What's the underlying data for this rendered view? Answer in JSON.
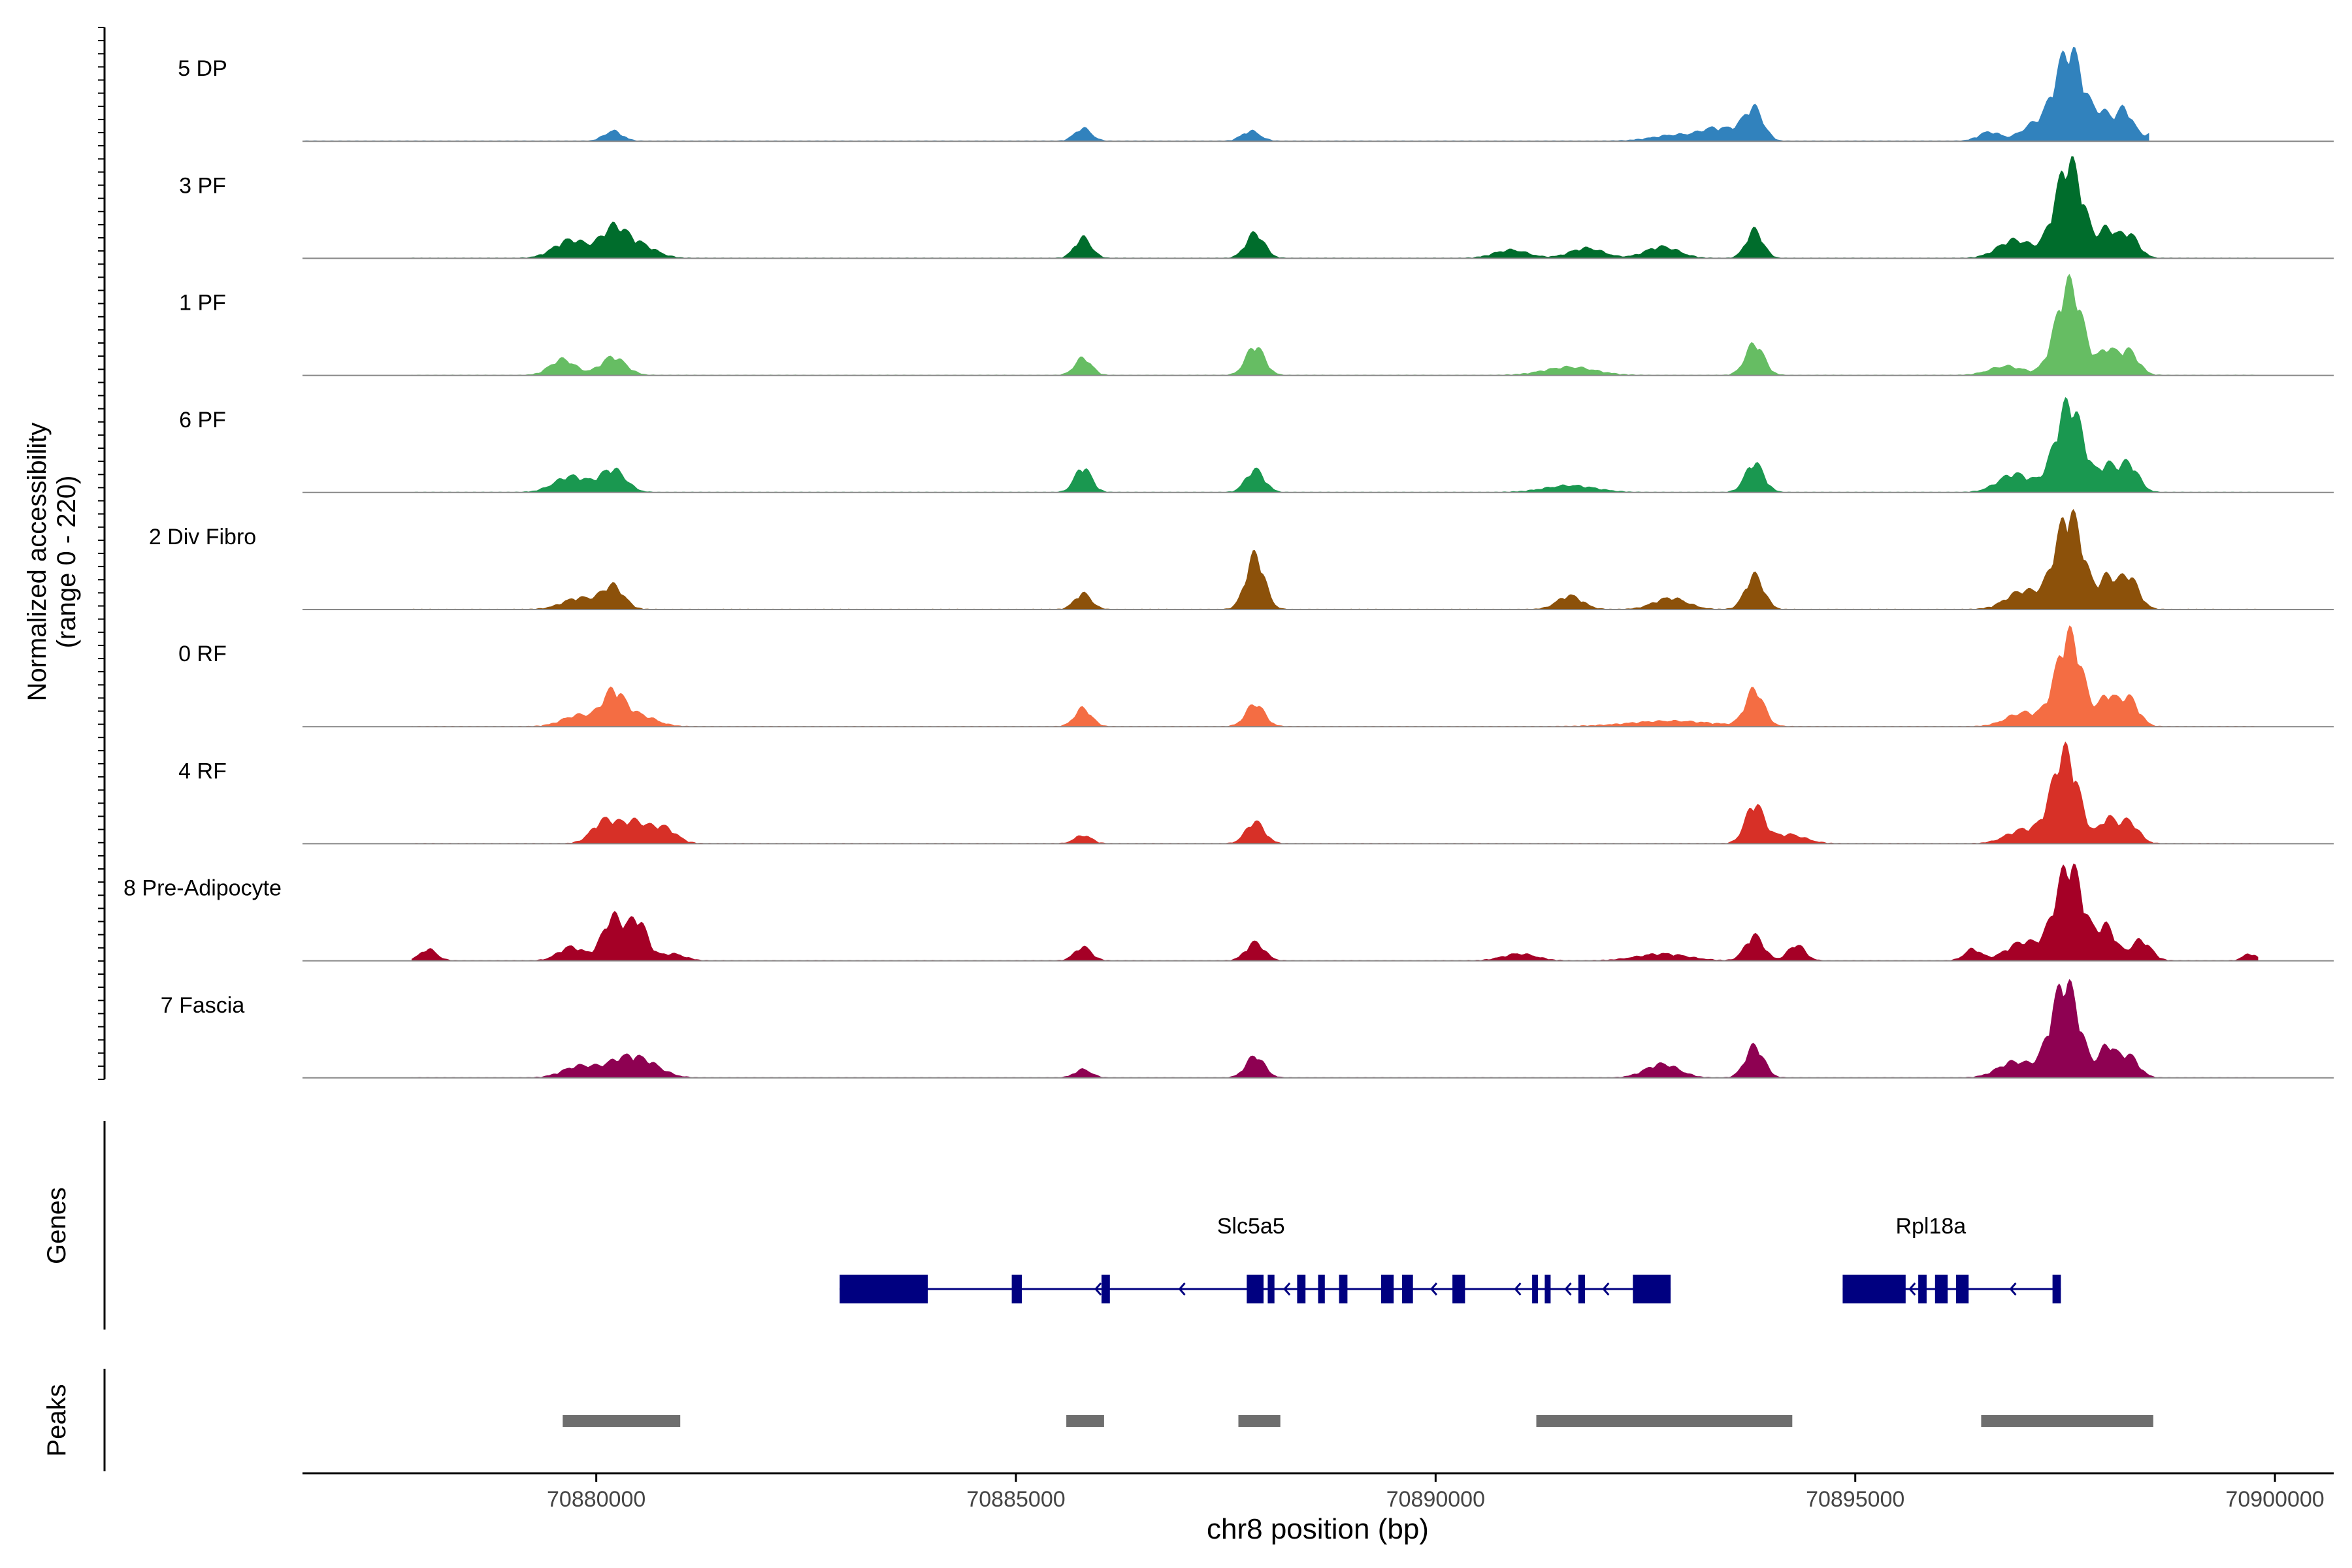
{
  "chart_data": {
    "type": "area",
    "title": "",
    "chromosome": "chr8",
    "x_range": [
      70876500,
      70900700
    ],
    "xlabel": "chr8 position (bp)",
    "xticks": [
      70880000,
      70885000,
      70890000,
      70895000,
      70900000
    ],
    "xtick_labels": [
      "70880000",
      "70885000",
      "70890000",
      "70895000",
      "70900000"
    ],
    "coverage_ylabel": [
      "Normalized accessibility",
      "(range 0 - 220)"
    ],
    "y_range": [
      0,
      220
    ],
    "genes_label": "Genes",
    "peaks_label": "Peaks",
    "tracks": [
      {
        "name": "5 DP",
        "color": "#3182bd",
        "span": [
          70876500,
          70898500
        ],
        "peaks": [
          [
            70880200,
            22,
            110
          ],
          [
            70885800,
            28,
            100
          ],
          [
            70887800,
            22,
            110
          ],
          [
            70892900,
            14,
            300
          ],
          [
            70893300,
            20,
            150
          ],
          [
            70893600,
            22,
            150
          ],
          [
            70893800,
            65,
            110
          ],
          [
            70896600,
            20,
            130
          ],
          [
            70897100,
            30,
            150
          ],
          [
            70897550,
            200,
            180
          ],
          [
            70897950,
            45,
            90
          ],
          [
            70898200,
            70,
            110
          ],
          [
            70898600,
            20,
            120
          ]
        ]
      },
      {
        "name": "3 PF",
        "color": "#006d2c",
        "span": [
          70877800,
          70899800
        ],
        "peaks": [
          [
            70879700,
            40,
            200
          ],
          [
            70880200,
            60,
            150
          ],
          [
            70880500,
            30,
            200
          ],
          [
            70885800,
            45,
            100
          ],
          [
            70887850,
            55,
            110
          ],
          [
            70890900,
            18,
            200
          ],
          [
            70891800,
            22,
            200
          ],
          [
            70892700,
            25,
            200
          ],
          [
            70893800,
            62,
            100
          ],
          [
            70896900,
            40,
            200
          ],
          [
            70897550,
            210,
            170
          ],
          [
            70898000,
            55,
            90
          ],
          [
            70898250,
            55,
            120
          ]
        ]
      },
      {
        "name": "1 PF",
        "color": "#66bd63",
        "span": [
          70877800,
          70899800
        ],
        "peaks": [
          [
            70879600,
            35,
            150
          ],
          [
            70880200,
            40,
            150
          ],
          [
            70885800,
            38,
            100
          ],
          [
            70887850,
            65,
            110
          ],
          [
            70891600,
            18,
            300
          ],
          [
            70893800,
            70,
            110
          ],
          [
            70896800,
            20,
            200
          ],
          [
            70897550,
            200,
            160
          ],
          [
            70898000,
            50,
            90
          ],
          [
            70898250,
            55,
            120
          ]
        ]
      },
      {
        "name": "6 PF",
        "color": "#1a9850",
        "span": [
          70877800,
          70899800
        ],
        "peaks": [
          [
            70879700,
            35,
            200
          ],
          [
            70880200,
            50,
            150
          ],
          [
            70885800,
            55,
            100
          ],
          [
            70887850,
            50,
            110
          ],
          [
            70891600,
            15,
            300
          ],
          [
            70893800,
            65,
            110
          ],
          [
            70896900,
            40,
            200
          ],
          [
            70897550,
            195,
            170
          ],
          [
            70898000,
            50,
            90
          ],
          [
            70898250,
            65,
            120
          ]
        ]
      },
      {
        "name": "2 Div Fibro",
        "color": "#8c510a",
        "span": [
          70877800,
          70899800
        ],
        "peaks": [
          [
            70879800,
            25,
            200
          ],
          [
            70880200,
            50,
            130
          ],
          [
            70885800,
            35,
            100
          ],
          [
            70887850,
            120,
            110
          ],
          [
            70891600,
            30,
            150
          ],
          [
            70892800,
            25,
            200
          ],
          [
            70893800,
            75,
            110
          ],
          [
            70897000,
            40,
            200
          ],
          [
            70897550,
            210,
            170
          ],
          [
            70898000,
            60,
            90
          ],
          [
            70898250,
            75,
            120
          ]
        ]
      },
      {
        "name": "0 RF",
        "color": "#f46d43",
        "span": [
          70877800,
          70899800
        ],
        "peaks": [
          [
            70879800,
            25,
            200
          ],
          [
            70880200,
            70,
            130
          ],
          [
            70880500,
            25,
            200
          ],
          [
            70885800,
            40,
            100
          ],
          [
            70887850,
            50,
            110
          ],
          [
            70892800,
            12,
            500
          ],
          [
            70893800,
            80,
            110
          ],
          [
            70897000,
            30,
            200
          ],
          [
            70897550,
            200,
            160
          ],
          [
            70898000,
            60,
            90
          ],
          [
            70898250,
            65,
            120
          ]
        ]
      },
      {
        "name": "4 RF",
        "color": "#d73027",
        "span": [
          70877800,
          70899800
        ],
        "peaks": [
          [
            70880100,
            50,
            150
          ],
          [
            70880450,
            45,
            150
          ],
          [
            70880800,
            35,
            150
          ],
          [
            70885800,
            18,
            100
          ],
          [
            70887850,
            48,
            110
          ],
          [
            70893800,
            85,
            110
          ],
          [
            70894200,
            20,
            200
          ],
          [
            70897000,
            30,
            200
          ],
          [
            70897500,
            200,
            160
          ],
          [
            70898000,
            50,
            90
          ],
          [
            70898250,
            50,
            120
          ]
        ]
      },
      {
        "name": "8 Pre-Adipocyte",
        "color": "#a50026",
        "span": [
          70877800,
          70899800
        ],
        "peaks": [
          [
            70878000,
            25,
            100
          ],
          [
            70879700,
            30,
            150
          ],
          [
            70880200,
            95,
            130
          ],
          [
            70880500,
            85,
            110
          ],
          [
            70880900,
            15,
            150
          ],
          [
            70885800,
            30,
            100
          ],
          [
            70887850,
            40,
            110
          ],
          [
            70891000,
            15,
            200
          ],
          [
            70892700,
            15,
            300
          ],
          [
            70893800,
            55,
            110
          ],
          [
            70894300,
            35,
            100
          ],
          [
            70896400,
            25,
            100
          ],
          [
            70897000,
            40,
            200
          ],
          [
            70897550,
            210,
            170
          ],
          [
            70898000,
            70,
            110
          ],
          [
            70898400,
            45,
            120
          ],
          [
            70899700,
            15,
            80
          ]
        ]
      },
      {
        "name": "7 Fascia",
        "color": "#8e0152",
        "span": [
          70877800,
          70899800
        ],
        "peaks": [
          [
            70879800,
            25,
            200
          ],
          [
            70880300,
            35,
            200
          ],
          [
            70880600,
            28,
            200
          ],
          [
            70885800,
            18,
            100
          ],
          [
            70887850,
            48,
            110
          ],
          [
            70892700,
            30,
            200
          ],
          [
            70893800,
            70,
            110
          ],
          [
            70896900,
            35,
            200
          ],
          [
            70897500,
            210,
            170
          ],
          [
            70898000,
            65,
            90
          ],
          [
            70898250,
            50,
            120
          ]
        ]
      }
    ],
    "genes": [
      {
        "name": "Slc5a5",
        "strand": "-",
        "start": 70882900,
        "end": 70892800,
        "exons": [
          [
            70882900,
            70883950
          ],
          [
            70884950,
            70885070
          ],
          [
            70886020,
            70886120
          ],
          [
            70887750,
            70887950
          ],
          [
            70888000,
            70888080
          ],
          [
            70888350,
            70888450
          ],
          [
            70888600,
            70888680
          ],
          [
            70888850,
            70888950
          ],
          [
            70889350,
            70889500
          ],
          [
            70889600,
            70889730
          ],
          [
            70890200,
            70890350
          ],
          [
            70891150,
            70891220
          ],
          [
            70891300,
            70891370
          ],
          [
            70891700,
            70891780
          ],
          [
            70892350,
            70892800
          ]
        ],
        "arrows": [
          70885950,
          70886950,
          70888200,
          70889950,
          70890950,
          70891550,
          70892000
        ]
      },
      {
        "name": "Rpl18a",
        "strand": "-",
        "start": 70894850,
        "end": 70897450,
        "exons": [
          [
            70894850,
            70895600
          ],
          [
            70895750,
            70895850
          ],
          [
            70895950,
            70896100
          ],
          [
            70896200,
            70896350
          ],
          [
            70897350,
            70897450
          ]
        ],
        "arrows": [
          70895650,
          70896850
        ]
      }
    ],
    "peaks": [
      [
        70879600,
        70881000
      ],
      [
        70885600,
        70886050
      ],
      [
        70887650,
        70888150
      ],
      [
        70891200,
        70894250
      ],
      [
        70896500,
        70898550
      ]
    ]
  }
}
